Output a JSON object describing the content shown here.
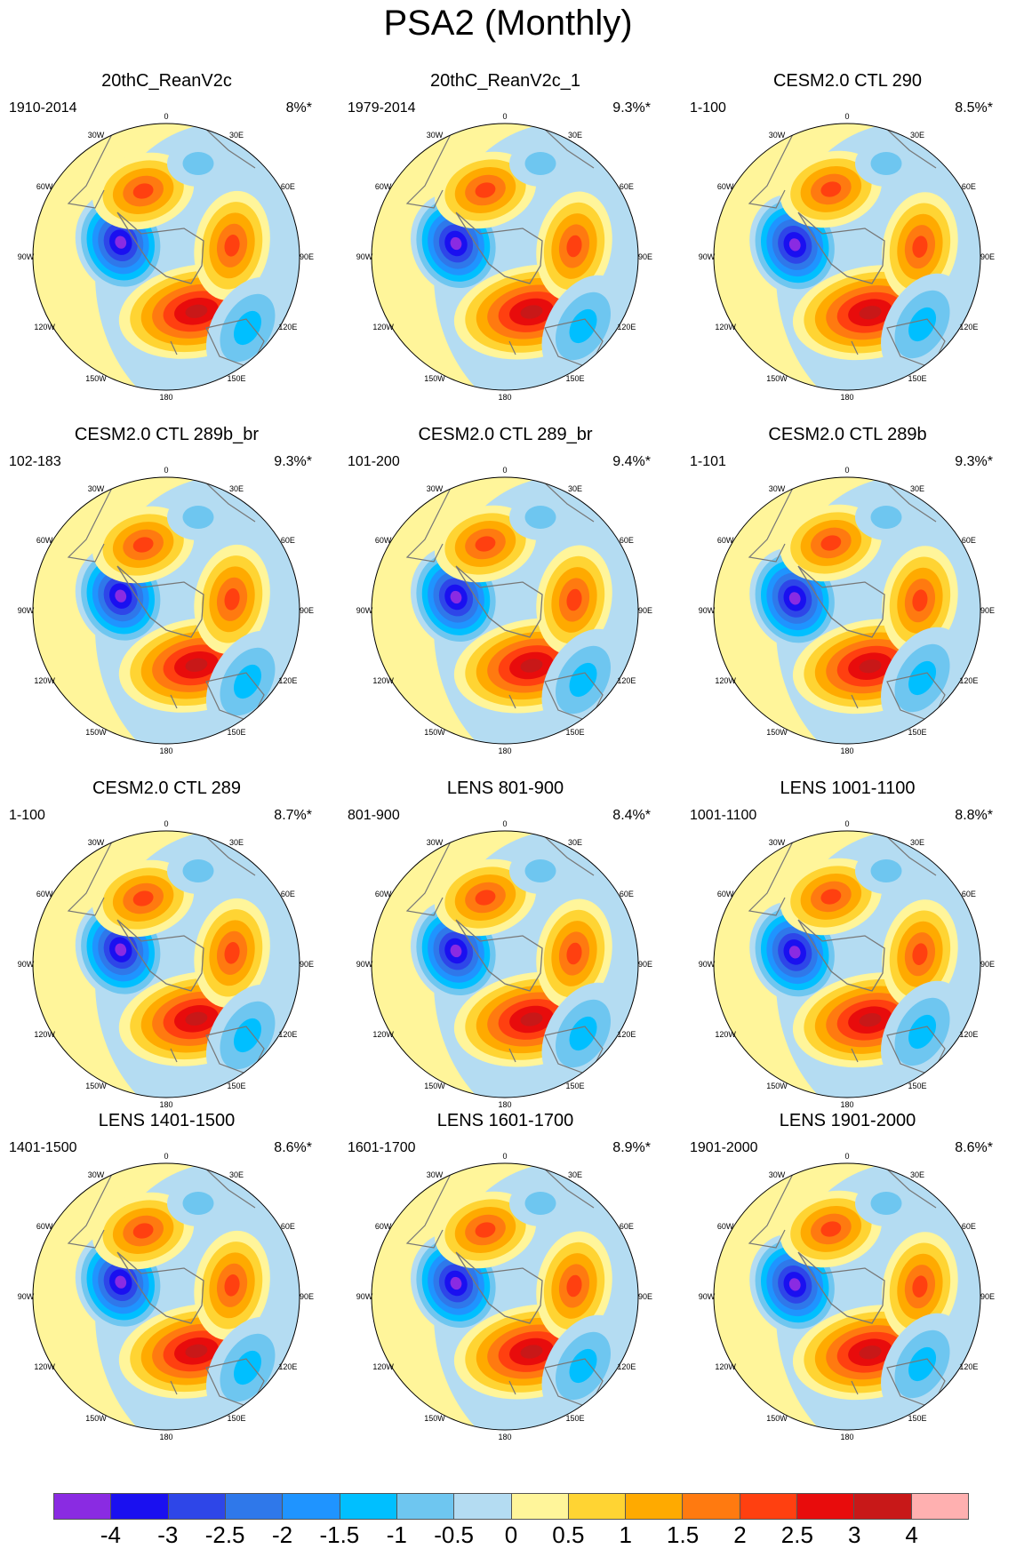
{
  "title": "PSA2 (Monthly)",
  "panels": [
    {
      "title": "20thC_ReanV2c",
      "period": "1910-2014",
      "variance": "8%*"
    },
    {
      "title": "20thC_ReanV2c_1",
      "period": "1979-2014",
      "variance": "9.3%*"
    },
    {
      "title": "CESM2.0 CTL 290",
      "period": "1-100",
      "variance": "8.5%*"
    },
    {
      "title": "CESM2.0 CTL 289b_br",
      "period": "102-183",
      "variance": "9.3%*"
    },
    {
      "title": "CESM2.0 CTL 289_br",
      "period": "101-200",
      "variance": "9.4%*"
    },
    {
      "title": "CESM2.0 CTL 289b",
      "period": "1-101",
      "variance": "9.3%*"
    },
    {
      "title": "CESM2.0 CTL 289",
      "period": "1-100",
      "variance": "8.7%*"
    },
    {
      "title": "LENS 801-900",
      "period": "801-900",
      "variance": "8.4%*"
    },
    {
      "title": "LENS 1001-1100",
      "period": "1001-1100",
      "variance": "8.8%*"
    },
    {
      "title": "LENS 1401-1500",
      "period": "1401-1500",
      "variance": "8.6%*"
    },
    {
      "title": "LENS 1601-1700",
      "period": "1601-1700",
      "variance": "8.9%*"
    },
    {
      "title": "LENS 1901-2000",
      "period": "1901-2000",
      "variance": "8.6%*"
    }
  ],
  "longitude_labels": [
    "0",
    "30E",
    "60E",
    "90E",
    "120E",
    "150E",
    "180",
    "150W",
    "120W",
    "90W",
    "60W",
    "30W"
  ],
  "colorbar": {
    "colors": [
      "#8a2be2",
      "#1a10f0",
      "#2e46e8",
      "#2f78ea",
      "#1f94ff",
      "#00bfff",
      "#6ec6f0",
      "#b4dcf2",
      "#fff59a",
      "#ffd433",
      "#ffaa00",
      "#ff7a10",
      "#ff4010",
      "#e80c0c",
      "#c81818",
      "#ffb0b0"
    ],
    "labels": [
      "-4",
      "-3",
      "-2.5",
      "-2",
      "-1.5",
      "-1",
      "-0.5",
      "0",
      "0.5",
      "1",
      "1.5",
      "2",
      "2.5",
      "3",
      "4"
    ]
  }
}
